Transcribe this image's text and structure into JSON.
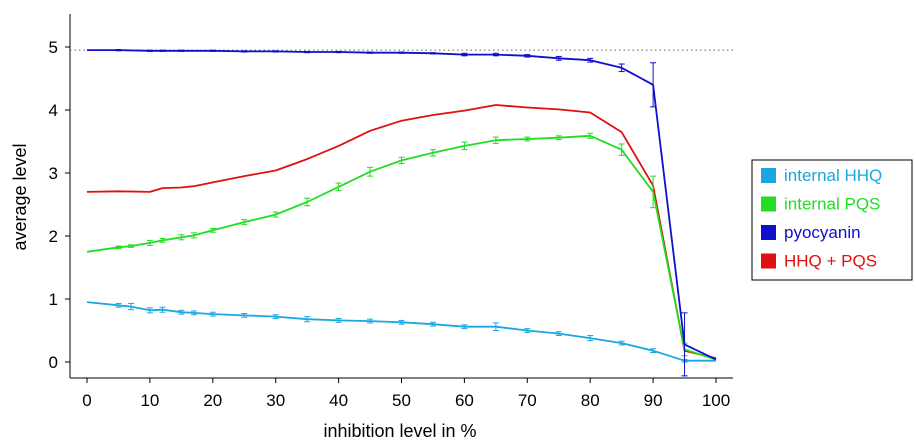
{
  "chart_data": {
    "type": "line",
    "xlabel": "inhibition level in %",
    "ylabel": "average level",
    "xlim": [
      0,
      100
    ],
    "ylim": [
      0,
      5.5
    ],
    "x_ticks": [
      "0",
      "10",
      "20",
      "30",
      "40",
      "50",
      "60",
      "70",
      "80",
      "90",
      "100"
    ],
    "y_ticks": [
      "0",
      "1",
      "2",
      "3",
      "4",
      "5"
    ],
    "reference_line": {
      "y": 4.95,
      "style": "dotted"
    },
    "legend_position": "right",
    "series": [
      {
        "name": "internal HHQ",
        "color": "#1aa7e0",
        "x": [
          0,
          5,
          7,
          10,
          12,
          15,
          17,
          20,
          25,
          30,
          35,
          40,
          45,
          50,
          55,
          60,
          65,
          70,
          75,
          80,
          85,
          90,
          95,
          100
        ],
        "y": [
          0.95,
          0.9,
          0.88,
          0.82,
          0.83,
          0.79,
          0.78,
          0.76,
          0.74,
          0.72,
          0.68,
          0.66,
          0.65,
          0.63,
          0.6,
          0.56,
          0.56,
          0.5,
          0.45,
          0.38,
          0.3,
          0.18,
          0.02,
          0.02
        ],
        "err": [
          0,
          0.03,
          0.05,
          0.04,
          0.04,
          0.03,
          0.03,
          0.03,
          0.03,
          0.03,
          0.04,
          0.03,
          0.03,
          0.03,
          0.03,
          0.03,
          0.06,
          0.03,
          0.03,
          0.04,
          0.03,
          0.03,
          0.02,
          0
        ]
      },
      {
        "name": "internal PQS",
        "color": "#22dd22",
        "x": [
          0,
          5,
          7,
          10,
          12,
          15,
          17,
          20,
          25,
          30,
          35,
          40,
          45,
          50,
          55,
          60,
          65,
          70,
          75,
          80,
          85,
          90,
          95,
          100
        ],
        "y": [
          1.75,
          1.82,
          1.84,
          1.89,
          1.93,
          1.98,
          2.01,
          2.09,
          2.22,
          2.34,
          2.54,
          2.78,
          3.02,
          3.2,
          3.32,
          3.43,
          3.52,
          3.54,
          3.56,
          3.59,
          3.37,
          2.7,
          0.2,
          0.04
        ],
        "err": [
          0,
          0.02,
          0.02,
          0.04,
          0.03,
          0.04,
          0.04,
          0.03,
          0.04,
          0.04,
          0.06,
          0.06,
          0.07,
          0.05,
          0.05,
          0.06,
          0.05,
          0.03,
          0.03,
          0.04,
          0.09,
          0.25,
          0.1,
          0
        ]
      },
      {
        "name": "pyocyanin",
        "color": "#0f0fcc",
        "x": [
          0,
          5,
          10,
          12,
          15,
          20,
          25,
          30,
          35,
          40,
          45,
          50,
          55,
          60,
          65,
          70,
          75,
          80,
          85,
          90,
          95,
          100
        ],
        "y": [
          4.95,
          4.95,
          4.94,
          4.94,
          4.94,
          4.94,
          4.93,
          4.93,
          4.92,
          4.92,
          4.91,
          4.91,
          4.9,
          4.88,
          4.88,
          4.86,
          4.82,
          4.79,
          4.67,
          4.4,
          0.28,
          0.04
        ],
        "err": [
          0,
          0.01,
          0.01,
          0.01,
          0.01,
          0.01,
          0.01,
          0.01,
          0.01,
          0.01,
          0.01,
          0.01,
          0.01,
          0.02,
          0.02,
          0.02,
          0.03,
          0.03,
          0.06,
          0.35,
          0.5,
          0
        ]
      },
      {
        "name": "HHQ + PQS",
        "color": "#e01010",
        "x": [
          0,
          5,
          10,
          12,
          15,
          17,
          20,
          25,
          30,
          35,
          40,
          45,
          50,
          55,
          60,
          65,
          70,
          75,
          80,
          85,
          90,
          95,
          100
        ],
        "y": [
          2.7,
          2.71,
          2.7,
          2.76,
          2.77,
          2.79,
          2.85,
          2.95,
          3.04,
          3.22,
          3.43,
          3.67,
          3.83,
          3.92,
          3.99,
          4.08,
          4.04,
          4.01,
          3.96,
          3.65,
          2.8,
          0.18,
          0.06
        ],
        "err": []
      }
    ]
  }
}
